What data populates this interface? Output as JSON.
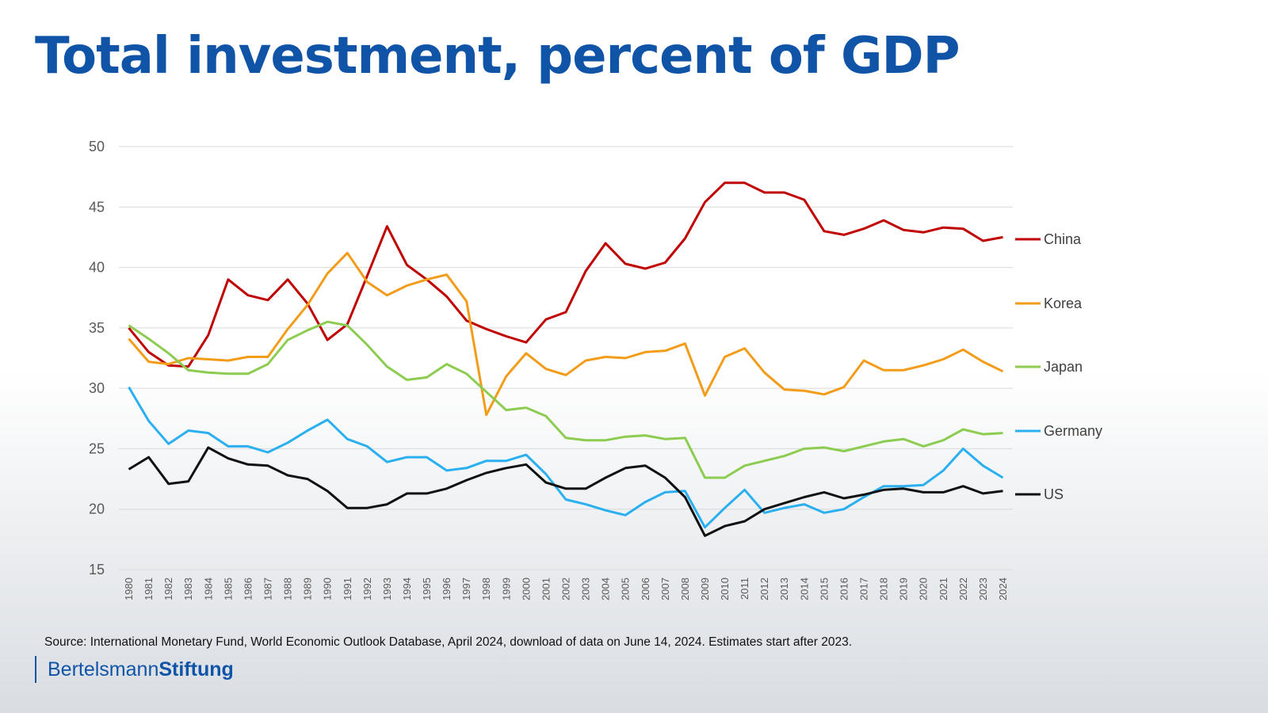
{
  "title": "Total investment, percent of GDP",
  "source": "Source: International Monetary Fund, World Economic Outlook Database, April 2024, download of data on June 14, 2024. Estimates start after 2023.",
  "brand": {
    "part1": "Bertelsmann",
    "part2": "Stiftung"
  },
  "chart_data": {
    "type": "line",
    "title": "",
    "xlabel": "",
    "ylabel": "",
    "ylim": [
      15,
      50
    ],
    "yticks": [
      15,
      20,
      25,
      30,
      35,
      40,
      45,
      50
    ],
    "grid": true,
    "legend_position": "right",
    "categories": [
      "1980",
      "1981",
      "1982",
      "1983",
      "1984",
      "1985",
      "1986",
      "1987",
      "1988",
      "1989",
      "1990",
      "1991",
      "1992",
      "1993",
      "1994",
      "1995",
      "1996",
      "1997",
      "1998",
      "1999",
      "2000",
      "2001",
      "2002",
      "2003",
      "2004",
      "2005",
      "2006",
      "2007",
      "2008",
      "2009",
      "2010",
      "2011",
      "2012",
      "2013",
      "2014",
      "2015",
      "2016",
      "2017",
      "2018",
      "2019",
      "2020",
      "2021",
      "2022",
      "2023",
      "2024"
    ],
    "series": [
      {
        "name": "China",
        "color": "#c00000",
        "values": [
          35.0,
          33.0,
          31.9,
          31.8,
          34.4,
          39.0,
          37.7,
          37.3,
          39.0,
          37.0,
          34.0,
          35.3,
          39.3,
          43.4,
          40.2,
          39.0,
          37.6,
          35.6,
          34.9,
          34.3,
          33.8,
          35.7,
          36.3,
          39.7,
          42.0,
          40.3,
          39.9,
          40.4,
          42.4,
          45.4,
          47.0,
          47.0,
          46.2,
          46.2,
          45.6,
          43.0,
          42.7,
          43.2,
          43.9,
          43.1,
          42.9,
          43.3,
          43.2,
          42.2,
          42.5
        ]
      },
      {
        "name": "Korea",
        "color": "#f39c19",
        "values": [
          34.1,
          32.2,
          32.0,
          32.5,
          32.4,
          32.3,
          32.6,
          32.6,
          34.9,
          36.9,
          39.5,
          41.2,
          38.8,
          37.7,
          38.5,
          39.0,
          39.4,
          37.2,
          27.8,
          31.0,
          32.9,
          31.6,
          31.1,
          32.3,
          32.6,
          32.5,
          33.0,
          33.1,
          33.7,
          29.4,
          32.6,
          33.3,
          31.3,
          29.9,
          29.8,
          29.5,
          30.1,
          32.3,
          31.5,
          31.5,
          31.9,
          32.4,
          33.2,
          32.2,
          31.4
        ]
      },
      {
        "name": "Japan",
        "color": "#8ccc50",
        "values": [
          35.2,
          34.1,
          32.9,
          31.5,
          31.3,
          31.2,
          31.2,
          32.0,
          34.0,
          34.8,
          35.5,
          35.2,
          33.6,
          31.8,
          30.7,
          30.9,
          32.0,
          31.2,
          29.7,
          28.2,
          28.4,
          27.7,
          25.9,
          25.7,
          25.7,
          26.0,
          26.1,
          25.8,
          25.9,
          22.6,
          22.6,
          23.6,
          24.0,
          24.4,
          25.0,
          25.1,
          24.8,
          25.2,
          25.6,
          25.8,
          25.2,
          25.7,
          26.6,
          26.2,
          26.3
        ]
      },
      {
        "name": "Germany",
        "color": "#2ab0f0",
        "values": [
          30.1,
          27.3,
          25.4,
          26.5,
          26.3,
          25.2,
          25.2,
          24.7,
          25.5,
          26.5,
          27.4,
          25.8,
          25.2,
          23.9,
          24.3,
          24.3,
          23.2,
          23.4,
          24.0,
          24.0,
          24.5,
          22.9,
          20.8,
          20.4,
          19.9,
          19.5,
          20.6,
          21.4,
          21.5,
          18.5,
          20.1,
          21.6,
          19.7,
          20.1,
          20.4,
          19.7,
          20.0,
          21.0,
          21.9,
          21.9,
          22.0,
          23.2,
          25.0,
          23.6,
          22.6
        ]
      },
      {
        "name": "US",
        "color": "#111111",
        "values": [
          23.3,
          24.3,
          22.1,
          22.3,
          25.1,
          24.2,
          23.7,
          23.6,
          22.8,
          22.5,
          21.5,
          20.1,
          20.1,
          20.4,
          21.3,
          21.3,
          21.7,
          22.4,
          23.0,
          23.4,
          23.7,
          22.2,
          21.7,
          21.7,
          22.6,
          23.4,
          23.6,
          22.6,
          21.0,
          17.8,
          18.6,
          19.0,
          20.0,
          20.5,
          21.0,
          21.4,
          20.9,
          21.2,
          21.6,
          21.7,
          21.4,
          21.4,
          21.9,
          21.3,
          21.5
        ]
      }
    ]
  }
}
